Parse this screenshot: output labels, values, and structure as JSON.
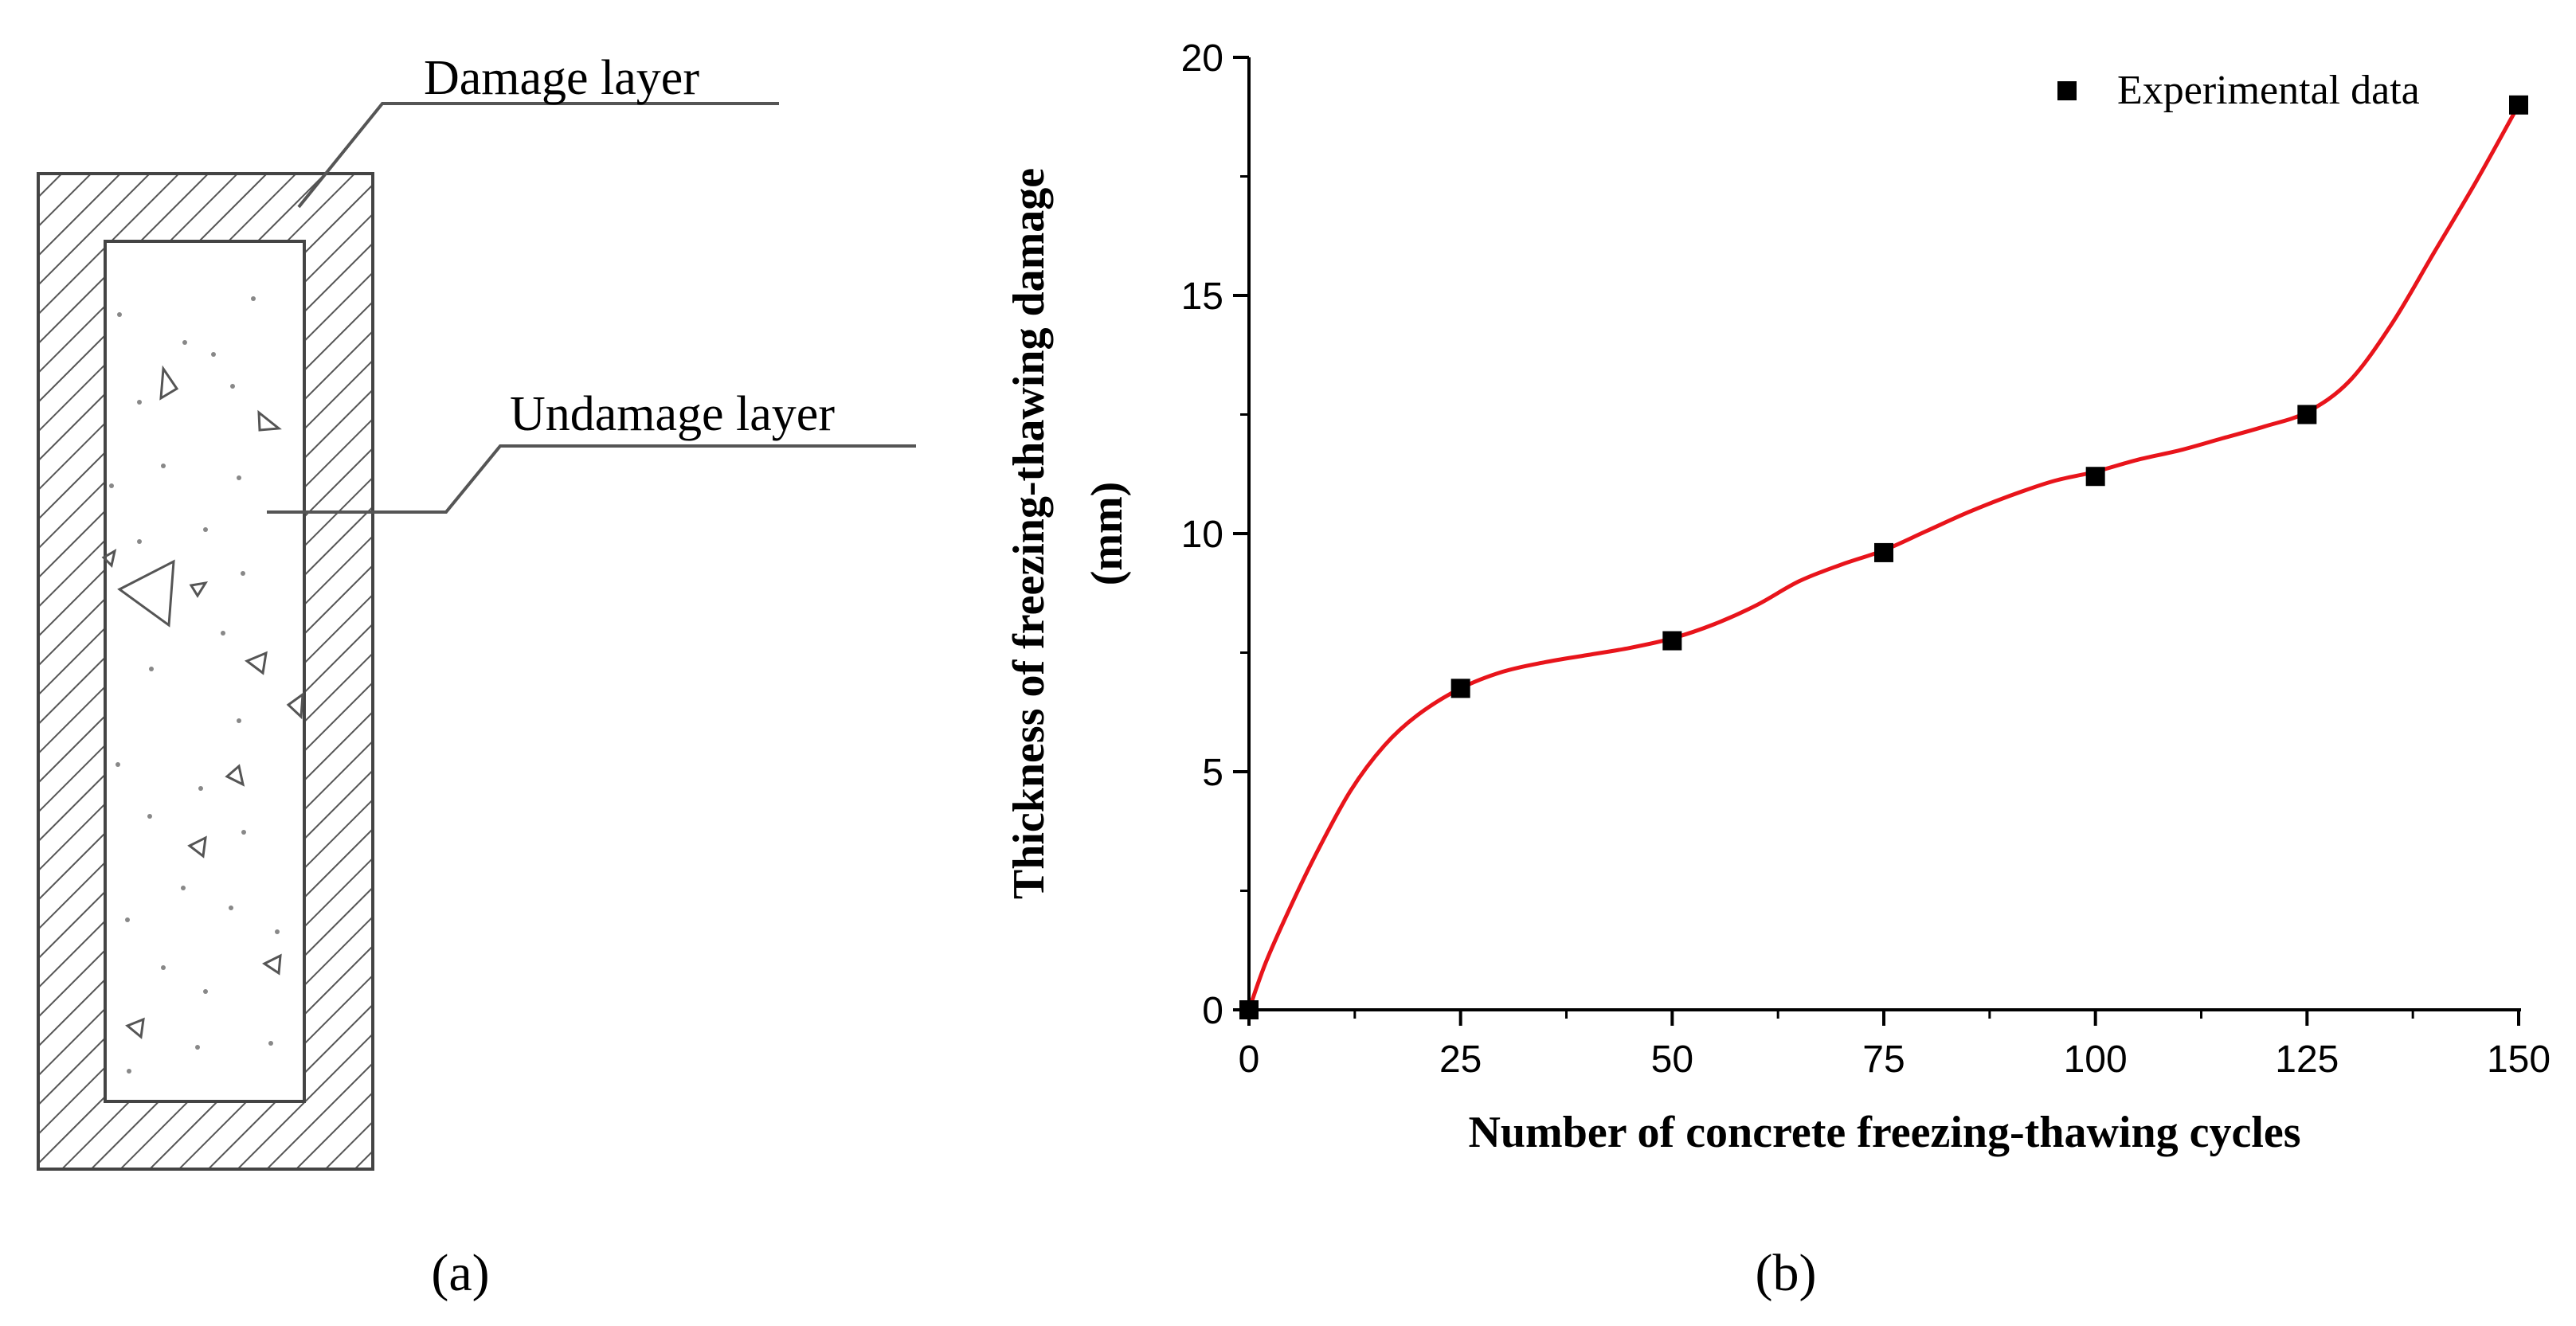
{
  "panel_a": {
    "label": "(a)",
    "damage_label": "Damage layer",
    "undamage_label": "Undamage layer"
  },
  "panel_b": {
    "label": "(b)"
  },
  "chart_data": {
    "type": "scatter",
    "title": "",
    "xlabel": "Number of concrete freezing-thawing cycles",
    "ylabel_line1": "Thickness of freezing-thawing damage",
    "ylabel_line2": "(mm)",
    "xlim": [
      0,
      150
    ],
    "ylim": [
      0,
      20
    ],
    "xticks": [
      0,
      25,
      50,
      75,
      100,
      125,
      150
    ],
    "yticks": [
      0,
      5,
      10,
      15,
      20
    ],
    "legend_position": "top-right",
    "series": [
      {
        "name": "Experimental data",
        "marker": "square",
        "color": "#000000",
        "x": [
          0,
          25,
          50,
          75,
          100,
          125,
          150
        ],
        "y": [
          0,
          6.75,
          7.75,
          9.6,
          11.2,
          12.5,
          19
        ]
      }
    ],
    "fit_curve": {
      "color": "#e8141b",
      "x": [
        0,
        2,
        5,
        8,
        12,
        16,
        20,
        25,
        30,
        35,
        40,
        45,
        50,
        55,
        60,
        65,
        70,
        75,
        80,
        85,
        90,
        95,
        100,
        105,
        110,
        115,
        120,
        125,
        130,
        135,
        140,
        145,
        150
      ],
      "y": [
        0,
        1.0,
        2.2,
        3.3,
        4.6,
        5.55,
        6.2,
        6.75,
        7.1,
        7.3,
        7.45,
        7.6,
        7.8,
        8.1,
        8.5,
        9.0,
        9.35,
        9.65,
        10.05,
        10.45,
        10.8,
        11.1,
        11.3,
        11.55,
        11.75,
        12.0,
        12.25,
        12.55,
        13.2,
        14.4,
        15.9,
        17.4,
        19
      ]
    }
  }
}
